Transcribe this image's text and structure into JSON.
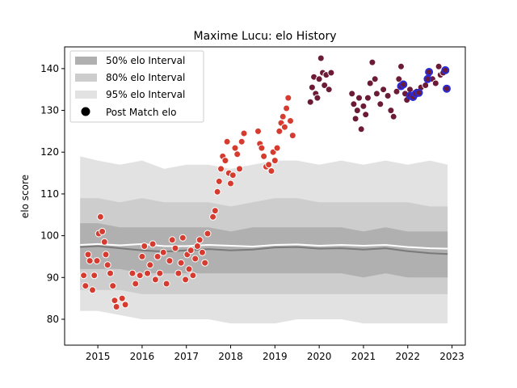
{
  "chart_data": {
    "type": "scatter",
    "title": "Maxime Lucu: elo History",
    "xlabel": "",
    "ylabel": "elo score",
    "xlim": [
      2014.25,
      2023.3
    ],
    "ylim": [
      73.8,
      145.2
    ],
    "x_ticks": [
      2015,
      2016,
      2017,
      2018,
      2019,
      2020,
      2021,
      2022,
      2023
    ],
    "y_ticks": [
      80,
      90,
      100,
      110,
      120,
      130,
      140
    ],
    "grid": false,
    "legend": {
      "placement": "top-left",
      "entries": [
        "50% elo Interval",
        "80% elo Interval",
        "95% elo Interval",
        "Post Match elo"
      ]
    },
    "bands": {
      "x": [
        2014.6,
        2015.0,
        2015.5,
        2016.0,
        2016.5,
        2017.0,
        2017.5,
        2018.0,
        2018.5,
        2019.0,
        2019.5,
        2020.0,
        2020.5,
        2021.0,
        2021.5,
        2022.0,
        2022.5,
        2022.9
      ],
      "p95_upper": [
        119,
        118,
        117,
        118,
        116,
        117,
        117,
        116,
        117,
        118,
        118,
        117,
        118,
        117,
        118,
        117,
        118,
        117
      ],
      "p80_upper": [
        109,
        109,
        108,
        109,
        108,
        108,
        108,
        107,
        108,
        109,
        109,
        108,
        108,
        108,
        108,
        108,
        107,
        107
      ],
      "p50_upper": [
        103,
        103,
        102,
        102,
        102,
        102,
        102,
        101,
        102,
        102,
        102,
        102,
        102,
        101,
        102,
        101,
        101,
        101
      ],
      "median": [
        97.3,
        97.5,
        97.0,
        96.5,
        96.2,
        96.5,
        96.8,
        96.5,
        96.7,
        97.2,
        97.3,
        96.9,
        97.0,
        96.7,
        97.0,
        96.3,
        95.8,
        95.6
      ],
      "mean": [
        97.8,
        98.0,
        97.7,
        98.0,
        97.5,
        97.5,
        97.8,
        97.6,
        97.4,
        97.8,
        97.9,
        97.6,
        97.8,
        97.6,
        97.8,
        97.3,
        97.0,
        96.9
      ],
      "p50_lower": [
        92,
        92,
        92,
        91,
        91,
        91,
        91,
        91,
        91,
        91,
        91,
        91,
        91,
        90,
        91,
        90,
        90,
        90
      ],
      "p80_lower": [
        87,
        87,
        87,
        86,
        86,
        86,
        86,
        86,
        86,
        86,
        86,
        86,
        86,
        86,
        86,
        86,
        86,
        86
      ],
      "p95_lower": [
        82,
        82,
        81,
        80,
        80,
        80,
        80,
        79,
        79,
        79,
        80,
        80,
        80,
        79,
        79,
        79,
        79,
        79
      ]
    },
    "colors": {
      "p95": "#e2e2e2",
      "p80": "#cdcdcd",
      "p50": "#b0b0b0",
      "median": "#7a7a7a",
      "mean": "#ffffff",
      "early_points": "#d63b2f",
      "late_points": "#6b1b35",
      "highlight_ring": "#2b2bd9",
      "point_edge": "#ffffff"
    },
    "series": [
      {
        "era": "2014-2019",
        "points": [
          [
            2014.68,
            90.5
          ],
          [
            2014.72,
            88.0
          ],
          [
            2014.78,
            95.5
          ],
          [
            2014.82,
            94.0
          ],
          [
            2014.88,
            87.0
          ],
          [
            2014.92,
            90.5
          ],
          [
            2014.98,
            94.0
          ],
          [
            2015.02,
            100.5
          ],
          [
            2015.06,
            104.5
          ],
          [
            2015.1,
            101.0
          ],
          [
            2015.15,
            98.5
          ],
          [
            2015.18,
            95.5
          ],
          [
            2015.22,
            93.0
          ],
          [
            2015.28,
            91.0
          ],
          [
            2015.34,
            88.0
          ],
          [
            2015.38,
            84.5
          ],
          [
            2015.42,
            83.0
          ],
          [
            2015.55,
            85.0
          ],
          [
            2015.62,
            83.5
          ],
          [
            2015.78,
            91.0
          ],
          [
            2015.85,
            88.5
          ],
          [
            2015.95,
            90.5
          ],
          [
            2016.0,
            95.0
          ],
          [
            2016.05,
            97.5
          ],
          [
            2016.12,
            91.0
          ],
          [
            2016.18,
            93.0
          ],
          [
            2016.24,
            98.0
          ],
          [
            2016.3,
            89.5
          ],
          [
            2016.35,
            95.0
          ],
          [
            2016.4,
            91.0
          ],
          [
            2016.48,
            96.0
          ],
          [
            2016.55,
            88.5
          ],
          [
            2016.62,
            94.0
          ],
          [
            2016.68,
            99.0
          ],
          [
            2016.75,
            97.0
          ],
          [
            2016.82,
            91.0
          ],
          [
            2016.88,
            93.5
          ],
          [
            2016.92,
            99.5
          ],
          [
            2016.98,
            89.5
          ],
          [
            2017.02,
            95.5
          ],
          [
            2017.06,
            92.0
          ],
          [
            2017.1,
            96.5
          ],
          [
            2017.15,
            90.5
          ],
          [
            2017.2,
            94.5
          ],
          [
            2017.25,
            97.5
          ],
          [
            2017.3,
            99.0
          ],
          [
            2017.36,
            96.0
          ],
          [
            2017.42,
            93.5
          ],
          [
            2017.48,
            100.5
          ],
          [
            2017.6,
            104.5
          ],
          [
            2017.65,
            106.0
          ],
          [
            2017.7,
            110.5
          ],
          [
            2017.74,
            113.0
          ],
          [
            2017.78,
            116.0
          ],
          [
            2017.82,
            119.0
          ],
          [
            2017.88,
            118.0
          ],
          [
            2017.92,
            122.5
          ],
          [
            2017.96,
            115.0
          ],
          [
            2018.0,
            112.5
          ],
          [
            2018.05,
            114.5
          ],
          [
            2018.1,
            121.0
          ],
          [
            2018.15,
            119.5
          ],
          [
            2018.2,
            116.0
          ],
          [
            2018.25,
            122.5
          ],
          [
            2018.3,
            124.5
          ],
          [
            2018.62,
            125.0
          ],
          [
            2018.66,
            122.0
          ],
          [
            2018.7,
            121.0
          ],
          [
            2018.75,
            119.0
          ],
          [
            2018.8,
            116.5
          ],
          [
            2018.86,
            117.0
          ],
          [
            2018.92,
            115.5
          ],
          [
            2018.96,
            120.0
          ],
          [
            2019.0,
            118.0
          ],
          [
            2019.05,
            121.0
          ],
          [
            2019.1,
            125.0
          ],
          [
            2019.14,
            127.0
          ],
          [
            2019.18,
            128.5
          ],
          [
            2019.22,
            126.0
          ],
          [
            2019.26,
            130.5
          ],
          [
            2019.3,
            133.0
          ],
          [
            2019.35,
            127.5
          ],
          [
            2019.4,
            124.0
          ]
        ]
      },
      {
        "era": "2019-2022",
        "points": [
          [
            2019.8,
            132.0
          ],
          [
            2019.84,
            135.5
          ],
          [
            2019.88,
            138.0
          ],
          [
            2019.92,
            134.0
          ],
          [
            2019.96,
            133.0
          ],
          [
            2020.0,
            137.5
          ],
          [
            2020.04,
            142.5
          ],
          [
            2020.08,
            139.0
          ],
          [
            2020.12,
            136.0
          ],
          [
            2020.16,
            138.5
          ],
          [
            2020.22,
            135.0
          ],
          [
            2020.27,
            139.0
          ],
          [
            2020.74,
            134.0
          ],
          [
            2020.78,
            131.5
          ],
          [
            2020.82,
            128.0
          ],
          [
            2020.86,
            130.0
          ],
          [
            2020.9,
            133.0
          ],
          [
            2020.95,
            125.5
          ],
          [
            2021.0,
            131.0
          ],
          [
            2021.05,
            129.0
          ],
          [
            2021.1,
            133.0
          ],
          [
            2021.15,
            136.5
          ],
          [
            2021.2,
            141.5
          ],
          [
            2021.26,
            137.5
          ],
          [
            2021.3,
            134.0
          ],
          [
            2021.38,
            131.5
          ],
          [
            2021.45,
            135.0
          ],
          [
            2021.55,
            133.5
          ],
          [
            2021.62,
            130.0
          ],
          [
            2021.68,
            128.5
          ],
          [
            2021.75,
            134.5
          ],
          [
            2021.8,
            137.5
          ],
          [
            2021.85,
            140.5
          ],
          [
            2021.9,
            136.5
          ],
          [
            2021.94,
            134.0
          ],
          [
            2021.98,
            132.5
          ],
          [
            2022.05,
            135.0
          ],
          [
            2022.12,
            133.0
          ],
          [
            2022.2,
            134.5
          ],
          [
            2022.3,
            135.5
          ],
          [
            2022.4,
            136.0
          ],
          [
            2022.48,
            138.0
          ],
          [
            2022.56,
            137.5
          ],
          [
            2022.63,
            136.5
          ],
          [
            2022.7,
            140.5
          ],
          [
            2022.74,
            138.5
          ],
          [
            2022.8,
            139.0
          ]
        ]
      },
      {
        "era": "recent",
        "points": [
          [
            2021.85,
            135.8
          ],
          [
            2021.9,
            136.2
          ],
          [
            2022.05,
            133.5
          ],
          [
            2022.12,
            133.2
          ],
          [
            2022.18,
            134.0
          ],
          [
            2022.25,
            134.2
          ],
          [
            2022.45,
            137.5
          ],
          [
            2022.48,
            139.2
          ],
          [
            2022.85,
            139.6
          ],
          [
            2022.88,
            135.2
          ]
        ]
      }
    ]
  }
}
